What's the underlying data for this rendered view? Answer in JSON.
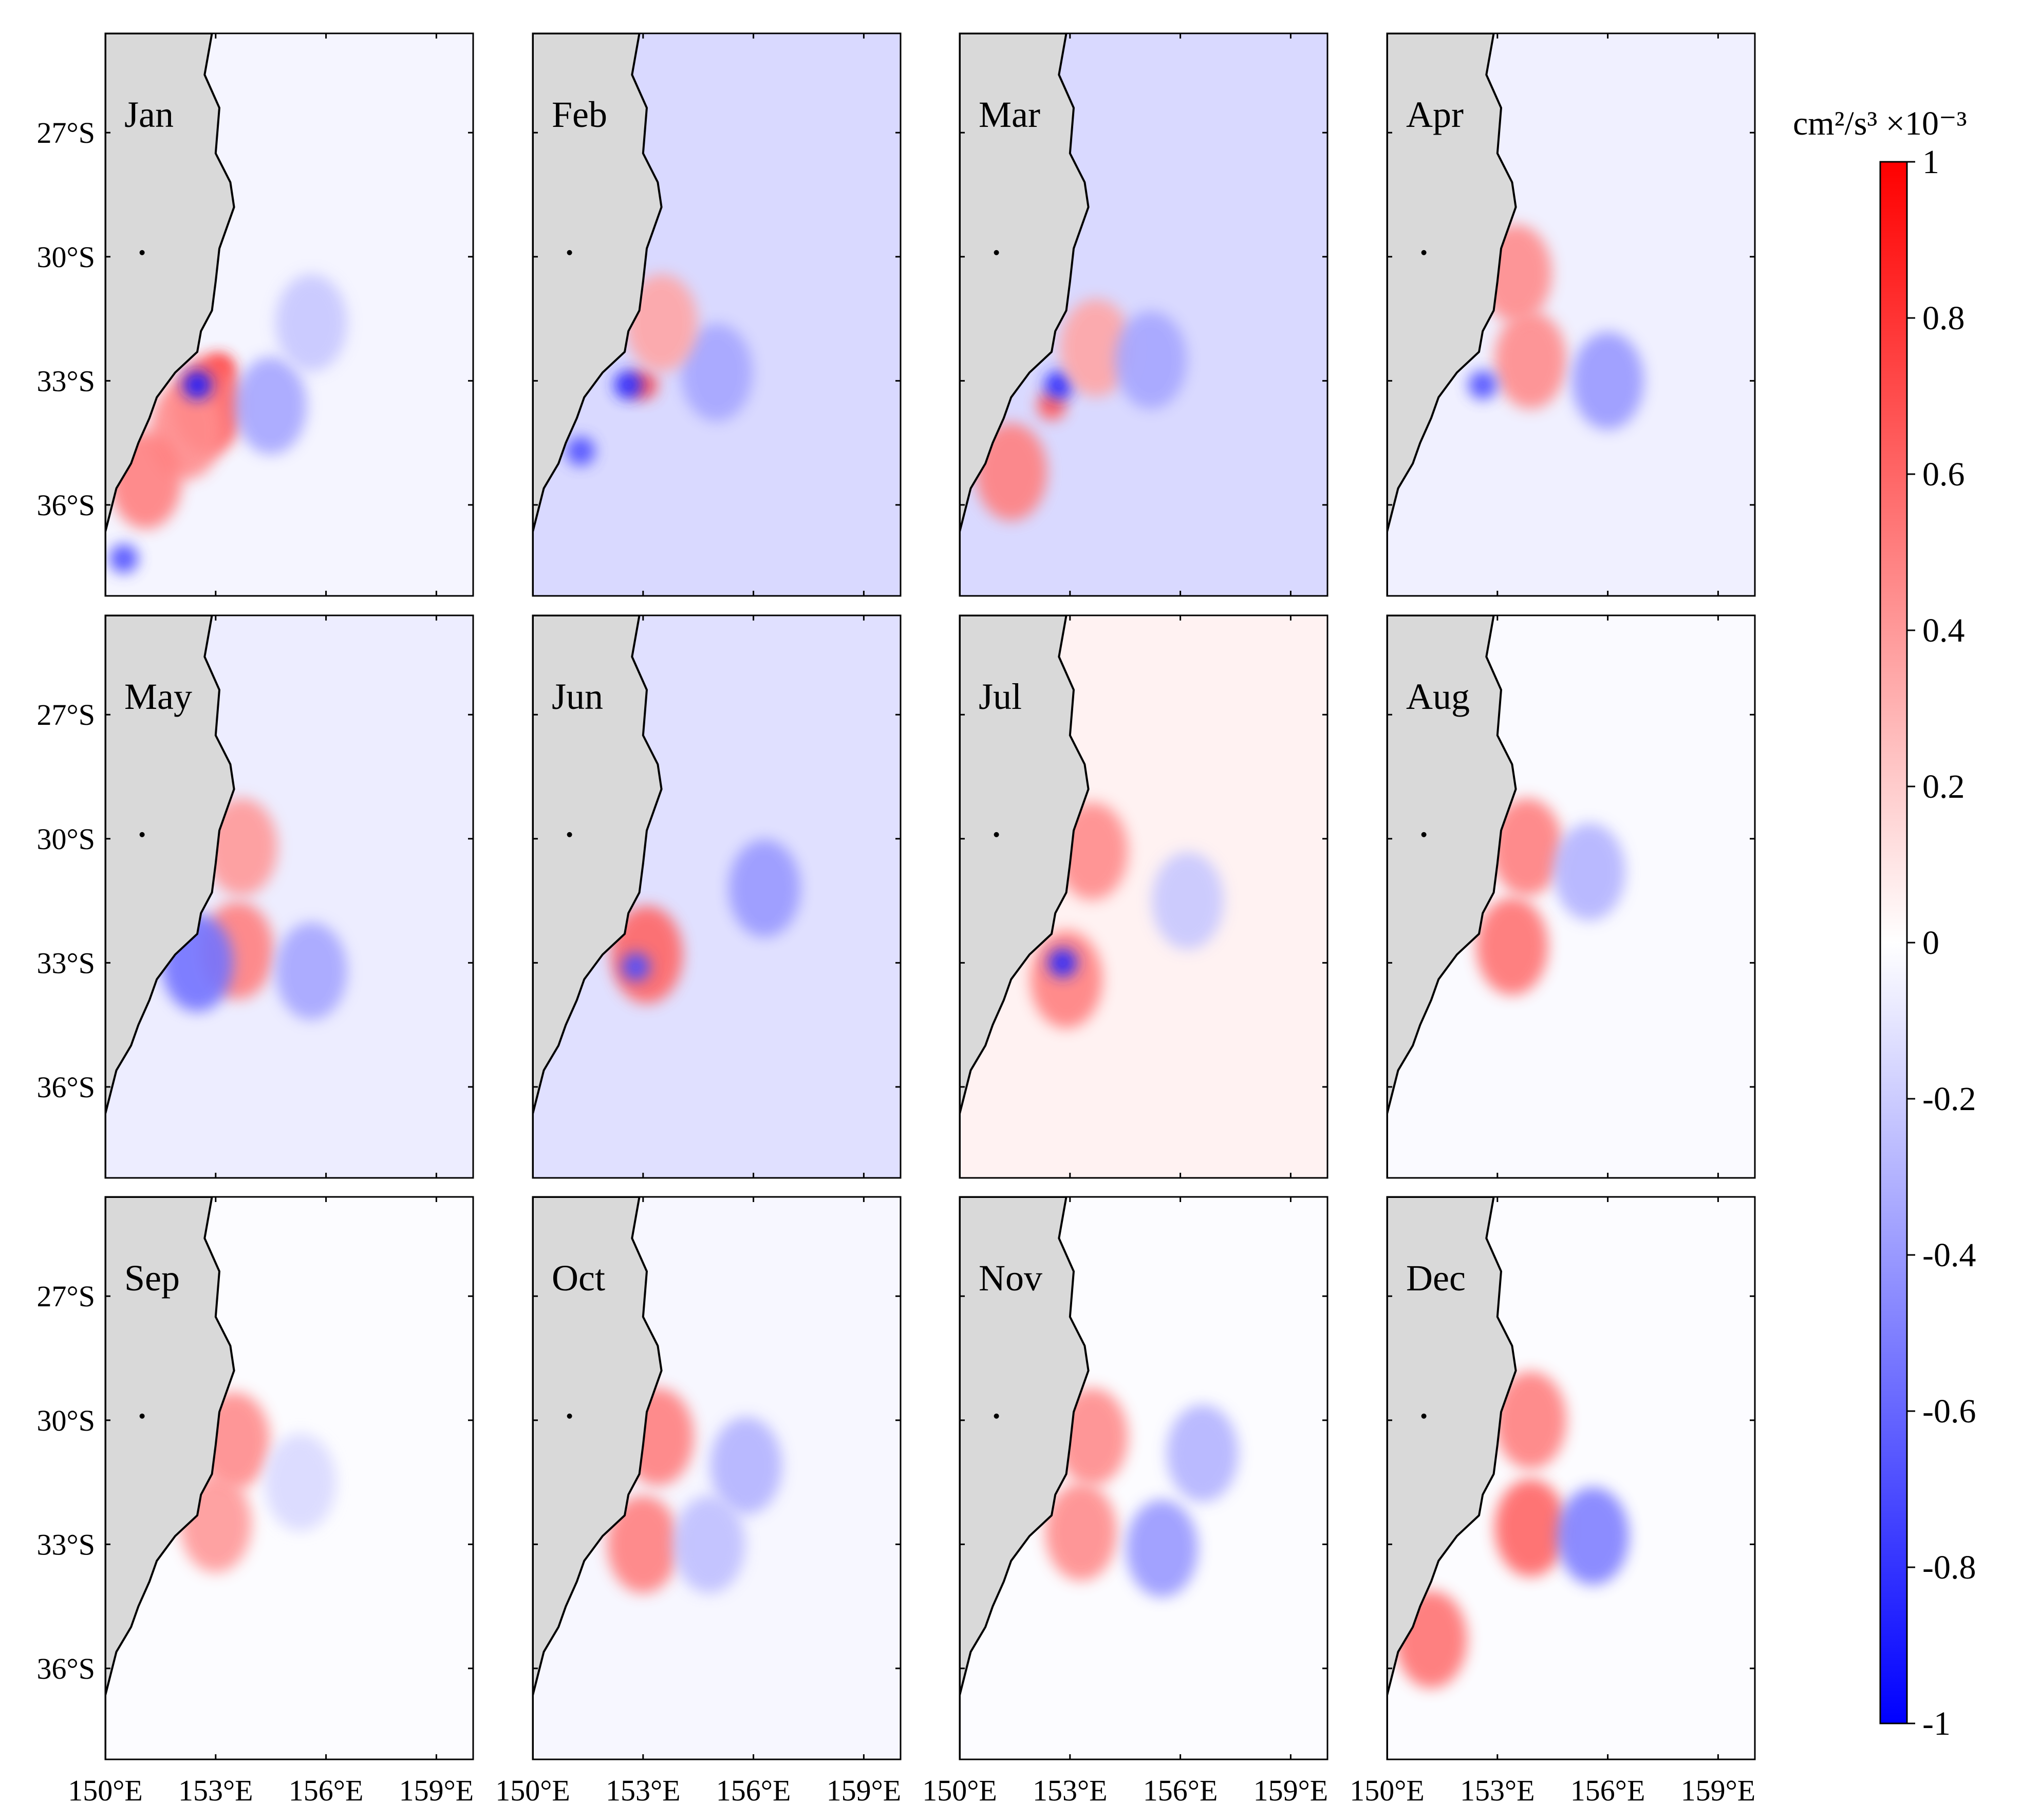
{
  "chart_data": {
    "type": "heatmap",
    "description_kind": "monthly contour maps (12 panels, 3 rows x 4 cols)",
    "panels": [
      {
        "label": "Jan"
      },
      {
        "label": "Feb"
      },
      {
        "label": "Mar"
      },
      {
        "label": "Apr"
      },
      {
        "label": "May"
      },
      {
        "label": "Jun"
      },
      {
        "label": "Jul"
      },
      {
        "label": "Aug"
      },
      {
        "label": "Sep"
      },
      {
        "label": "Oct"
      },
      {
        "label": "Nov"
      },
      {
        "label": "Dec"
      }
    ],
    "panel_background_level": [
      -0.04,
      -0.15,
      -0.15,
      -0.06,
      -0.07,
      -0.12,
      0.05,
      -0.02,
      -0.01,
      -0.03,
      -0.01,
      -0.01
    ],
    "x_range": [
      150,
      160
    ],
    "y_range": [
      -38.2,
      -24.6
    ],
    "x_ticks": [
      {
        "value": 150,
        "label": "150°E"
      },
      {
        "value": 153,
        "label": "153°E"
      },
      {
        "value": 156,
        "label": "156°E"
      },
      {
        "value": 159,
        "label": "159°E"
      }
    ],
    "y_ticks": [
      {
        "value": -27,
        "label": "27°S"
      },
      {
        "value": -30,
        "label": "30°S"
      },
      {
        "value": -33,
        "label": "33°S"
      },
      {
        "value": -36,
        "label": "36°S"
      }
    ],
    "coastline": [
      [
        152.9,
        -24.6
      ],
      [
        152.7,
        -25.6
      ],
      [
        153.1,
        -26.4
      ],
      [
        153.0,
        -27.5
      ],
      [
        153.4,
        -28.2
      ],
      [
        153.5,
        -28.8
      ],
      [
        153.1,
        -29.8
      ],
      [
        153.0,
        -30.6
      ],
      [
        152.9,
        -31.3
      ],
      [
        152.6,
        -31.8
      ],
      [
        152.5,
        -32.3
      ],
      [
        151.9,
        -32.8
      ],
      [
        151.4,
        -33.4
      ],
      [
        151.2,
        -33.9
      ],
      [
        150.9,
        -34.5
      ],
      [
        150.7,
        -35.0
      ],
      [
        150.3,
        -35.6
      ],
      [
        150.1,
        -36.3
      ],
      [
        149.9,
        -37.0
      ],
      [
        149.9,
        -37.6
      ],
      [
        149.9,
        -38.2
      ]
    ],
    "island": [
      151.0,
      -29.9
    ],
    "colorbar": {
      "title": "cm²/s³ ×10⁻³",
      "min": -1,
      "max": 1,
      "ticks": [
        {
          "value": 1,
          "label": "1"
        },
        {
          "value": 0.8,
          "label": "0.8"
        },
        {
          "value": 0.6,
          "label": "0.6"
        },
        {
          "value": 0.4,
          "label": "0.4"
        },
        {
          "value": 0.2,
          "label": "0.2"
        },
        {
          "value": 0,
          "label": "0"
        },
        {
          "value": -0.2,
          "label": "-0.2"
        },
        {
          "value": -0.4,
          "label": "-0.4"
        },
        {
          "value": -0.6,
          "label": "-0.6"
        },
        {
          "value": -0.8,
          "label": "-0.8"
        },
        {
          "value": -1,
          "label": "-1"
        }
      ],
      "colors": {
        "negative": "#0000ff",
        "zero": "#ffffff",
        "positive": "#ff0000"
      }
    },
    "land_color": "#d9d9d9",
    "features": [
      {
        "panel": 0,
        "lon": 153.1,
        "lat": -32.7,
        "value": 0.85
      },
      {
        "panel": 0,
        "lon": 152.8,
        "lat": -33.6,
        "value": 0.6
      },
      {
        "panel": 0,
        "lon": 152.2,
        "lat": -34.2,
        "value": 0.45
      },
      {
        "panel": 0,
        "lon": 152.5,
        "lat": -33.1,
        "value": -0.9
      },
      {
        "panel": 0,
        "lon": 154.5,
        "lat": -33.6,
        "value": -0.35
      },
      {
        "panel": 0,
        "lon": 155.6,
        "lat": -31.6,
        "value": -0.22
      },
      {
        "panel": 0,
        "lon": 151.1,
        "lat": -35.4,
        "value": 0.5
      },
      {
        "panel": 0,
        "lon": 150.5,
        "lat": -37.3,
        "value": -0.7
      },
      {
        "panel": 1,
        "lon": 153.0,
        "lat": -33.1,
        "value": 0.7
      },
      {
        "panel": 1,
        "lon": 152.6,
        "lat": -33.1,
        "value": -0.85
      },
      {
        "panel": 1,
        "lon": 155.0,
        "lat": -32.8,
        "value": -0.35
      },
      {
        "panel": 1,
        "lon": 151.3,
        "lat": -34.7,
        "value": -0.7
      },
      {
        "panel": 1,
        "lon": 153.5,
        "lat": -31.6,
        "value": 0.35
      },
      {
        "panel": 2,
        "lon": 152.5,
        "lat": -33.6,
        "value": 0.65
      },
      {
        "panel": 2,
        "lon": 152.7,
        "lat": -33.1,
        "value": -0.85
      },
      {
        "panel": 2,
        "lon": 153.7,
        "lat": -32.2,
        "value": 0.35
      },
      {
        "panel": 2,
        "lon": 155.2,
        "lat": -32.5,
        "value": -0.35
      },
      {
        "panel": 2,
        "lon": 151.4,
        "lat": -35.2,
        "value": 0.5
      },
      {
        "panel": 3,
        "lon": 153.9,
        "lat": -32.5,
        "value": 0.45
      },
      {
        "panel": 3,
        "lon": 153.5,
        "lat": -30.4,
        "value": 0.45
      },
      {
        "panel": 3,
        "lon": 152.6,
        "lat": -33.1,
        "value": -0.7
      },
      {
        "panel": 3,
        "lon": 156.0,
        "lat": -33.0,
        "value": -0.4
      },
      {
        "panel": 4,
        "lon": 153.6,
        "lat": -32.7,
        "value": 0.5
      },
      {
        "panel": 4,
        "lon": 153.7,
        "lat": -30.2,
        "value": 0.4
      },
      {
        "panel": 4,
        "lon": 155.6,
        "lat": -33.2,
        "value": -0.35
      },
      {
        "panel": 4,
        "lon": 152.5,
        "lat": -33.0,
        "value": -0.55
      },
      {
        "panel": 5,
        "lon": 153.1,
        "lat": -32.8,
        "value": 0.6
      },
      {
        "panel": 5,
        "lon": 152.8,
        "lat": -33.1,
        "value": -0.7
      },
      {
        "panel": 5,
        "lon": 156.3,
        "lat": -31.2,
        "value": -0.4
      },
      {
        "panel": 6,
        "lon": 152.9,
        "lat": -33.4,
        "value": 0.5
      },
      {
        "panel": 6,
        "lon": 153.6,
        "lat": -30.3,
        "value": 0.45
      },
      {
        "panel": 6,
        "lon": 152.8,
        "lat": -33.0,
        "value": -0.85
      },
      {
        "panel": 6,
        "lon": 156.2,
        "lat": -31.5,
        "value": -0.22
      },
      {
        "panel": 7,
        "lon": 153.8,
        "lat": -30.2,
        "value": 0.5
      },
      {
        "panel": 7,
        "lon": 153.4,
        "lat": -32.6,
        "value": 0.55
      },
      {
        "panel": 7,
        "lon": 155.5,
        "lat": -30.8,
        "value": -0.3
      },
      {
        "panel": 8,
        "lon": 153.5,
        "lat": -30.5,
        "value": 0.45
      },
      {
        "panel": 8,
        "lon": 153.0,
        "lat": -32.5,
        "value": 0.4
      },
      {
        "panel": 8,
        "lon": 155.3,
        "lat": -31.5,
        "value": -0.15
      },
      {
        "panel": 9,
        "lon": 153.4,
        "lat": -30.4,
        "value": 0.5
      },
      {
        "panel": 9,
        "lon": 153.0,
        "lat": -33.0,
        "value": 0.5
      },
      {
        "panel": 9,
        "lon": 155.8,
        "lat": -31.1,
        "value": -0.3
      },
      {
        "panel": 9,
        "lon": 154.8,
        "lat": -33.0,
        "value": -0.25
      },
      {
        "panel": 10,
        "lon": 153.6,
        "lat": -30.4,
        "value": 0.45
      },
      {
        "panel": 10,
        "lon": 153.3,
        "lat": -32.7,
        "value": 0.45
      },
      {
        "panel": 10,
        "lon": 155.5,
        "lat": -33.1,
        "value": -0.4
      },
      {
        "panel": 10,
        "lon": 156.6,
        "lat": -30.8,
        "value": -0.3
      },
      {
        "panel": 11,
        "lon": 153.9,
        "lat": -32.6,
        "value": 0.6
      },
      {
        "panel": 11,
        "lon": 155.6,
        "lat": -32.8,
        "value": -0.5
      },
      {
        "panel": 11,
        "lon": 153.9,
        "lat": -30.0,
        "value": 0.5
      },
      {
        "panel": 11,
        "lon": 151.2,
        "lat": -35.3,
        "value": 0.55
      }
    ]
  }
}
